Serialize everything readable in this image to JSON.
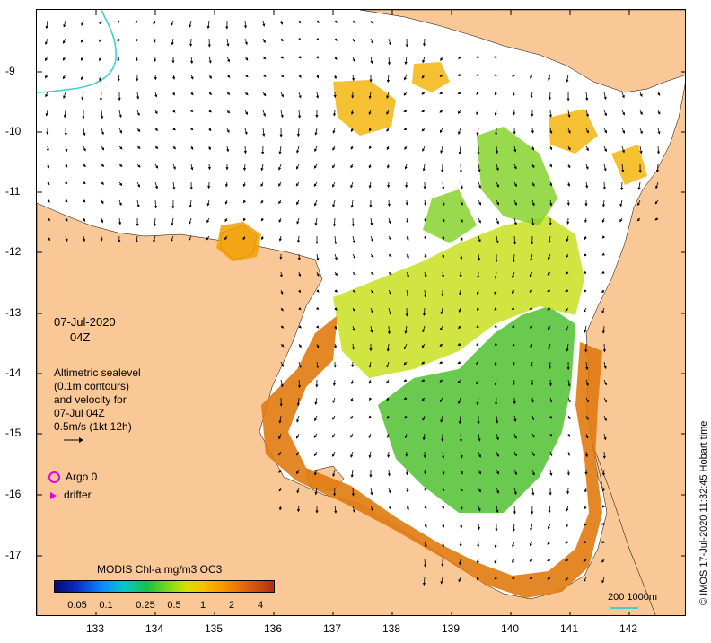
{
  "map": {
    "date": "07-Jul-2020",
    "hour": "04Z",
    "description_lines": [
      "Altimetric sealevel",
      "(0.1m contours)",
      "and velocity for",
      "07-Jul 04Z",
      "0.5m/s (1kt 12h)"
    ],
    "legend": [
      {
        "symbol": "argo-circle",
        "label": "Argo 0",
        "color": "#e600e6"
      },
      {
        "symbol": "drifter-arrow",
        "label": "drifter",
        "color": "#e600e6"
      }
    ],
    "colorbar": {
      "title": "MODIS Chl-a mg/m3 OC3",
      "ticks": [
        "0.05",
        "0.1",
        "0.25",
        "0.5",
        "1",
        "2",
        "4"
      ],
      "colors": [
        "#0a0a6e",
        "#0a2cc8",
        "#0a8cff",
        "#08c8c8",
        "#16c048",
        "#7ed818",
        "#d8e000",
        "#f8c000",
        "#f89000",
        "#e06010",
        "#b03010"
      ]
    },
    "scale_bar": "200  1000m",
    "credit": "© IMOS 17-Jul-2020 11:32:45 Hobart time",
    "x_ticks": [
      "133",
      "134",
      "135",
      "136",
      "137",
      "138",
      "139",
      "140",
      "141",
      "142"
    ],
    "y_ticks": [
      "-9",
      "-10",
      "-11",
      "-12",
      "-13",
      "-14",
      "-15",
      "-16",
      "-17"
    ],
    "land_color": "#fac896",
    "contour_color": "#40d0d0"
  }
}
